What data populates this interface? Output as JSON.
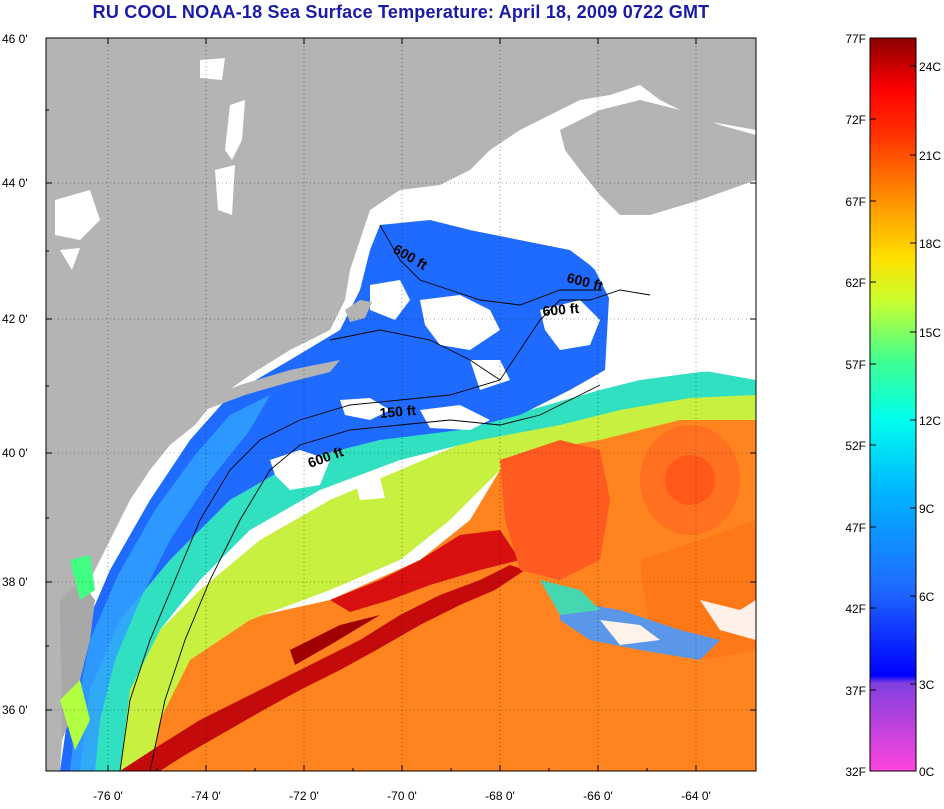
{
  "title": "RU COOL  NOAA-18  Sea Surface Temperature:  April 18, 2009 0722 GMT",
  "map": {
    "lat_labels": [
      "46 0'",
      "44 0'",
      "42 0'",
      "40 0'",
      "38 0'",
      "36 0'"
    ],
    "lon_labels": [
      "-76 0'",
      "-74 0'",
      "-72 0'",
      "-70 0'",
      "-68 0'",
      "-66 0'",
      "-64 0'"
    ],
    "contour_labels": [
      "600 ft",
      "600 ft",
      "600 ft",
      "150 ft",
      "600 ft"
    ],
    "colors": {
      "land": "#b4b4b4",
      "cloud": "#ffffff",
      "cold_water": "#1f6bff",
      "gulf_stream": "#d01010",
      "warm_water": "#ff7a10"
    }
  },
  "colorbar": {
    "fahrenheit_labels": [
      "77F",
      "72F",
      "67F",
      "62F",
      "57F",
      "52F",
      "47F",
      "42F",
      "37F",
      "32F"
    ],
    "celsius_labels": [
      "24C",
      "21C",
      "18C",
      "15C",
      "12C",
      "9C",
      "6C",
      "3C",
      "0C"
    ]
  }
}
